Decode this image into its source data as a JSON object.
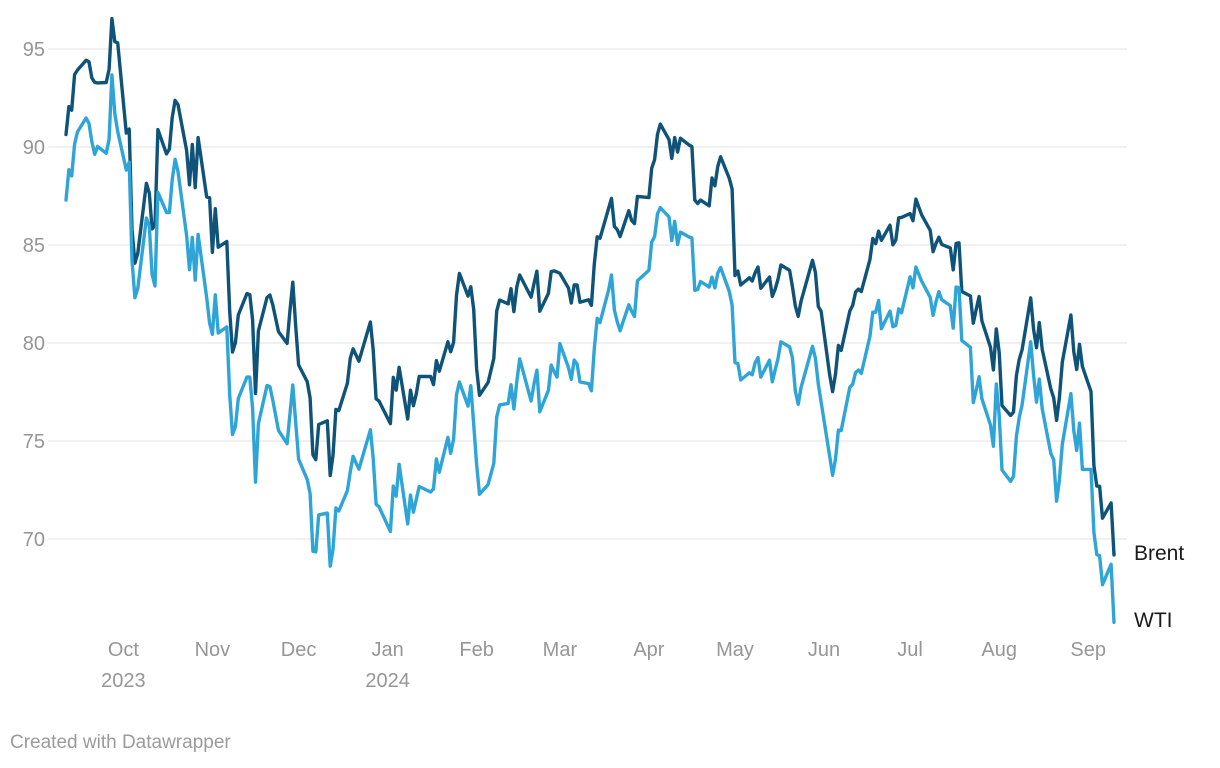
{
  "footer": {
    "credit": "Created with Datawrapper"
  },
  "colors": {
    "brent_line": "#0f5379",
    "wti_line": "#2fa5d7",
    "grid": "#e2e2e2",
    "axis_text": "#969696",
    "series_label_text": "#1a1a1a",
    "credit_text": "#9b9b9b",
    "background": "#ffffff"
  },
  "chart_data": {
    "type": "line",
    "title": "",
    "xlabel": "",
    "ylabel": "",
    "grid": "horizontal",
    "legend_position": "line-end-labels",
    "ylim": [
      65.5,
      97
    ],
    "yticks": [
      70,
      75,
      80,
      85,
      90,
      95
    ],
    "x_range": [
      "2023-09-11",
      "2024-09-10"
    ],
    "x_ticks": [
      {
        "date": "2023-10-01",
        "label": "Oct",
        "sublabel": "2023"
      },
      {
        "date": "2023-11-01",
        "label": "Nov"
      },
      {
        "date": "2023-12-01",
        "label": "Dec"
      },
      {
        "date": "2024-01-01",
        "label": "Jan",
        "sublabel": "2024"
      },
      {
        "date": "2024-02-01",
        "label": "Feb"
      },
      {
        "date": "2024-03-01",
        "label": "Mar"
      },
      {
        "date": "2024-04-01",
        "label": "Apr"
      },
      {
        "date": "2024-05-01",
        "label": "May"
      },
      {
        "date": "2024-06-01",
        "label": "Jun"
      },
      {
        "date": "2024-07-01",
        "label": "Jul"
      },
      {
        "date": "2024-08-01",
        "label": "Aug"
      },
      {
        "date": "2024-09-01",
        "label": "Sep"
      }
    ],
    "x": [
      "2023-09-11",
      "2023-09-12",
      "2023-09-13",
      "2023-09-14",
      "2023-09-15",
      "2023-09-18",
      "2023-09-19",
      "2023-09-20",
      "2023-09-21",
      "2023-09-22",
      "2023-09-25",
      "2023-09-26",
      "2023-09-27",
      "2023-09-28",
      "2023-09-29",
      "2023-10-02",
      "2023-10-03",
      "2023-10-04",
      "2023-10-05",
      "2023-10-06",
      "2023-10-09",
      "2023-10-10",
      "2023-10-11",
      "2023-10-12",
      "2023-10-13",
      "2023-10-16",
      "2023-10-17",
      "2023-10-18",
      "2023-10-19",
      "2023-10-20",
      "2023-10-23",
      "2023-10-24",
      "2023-10-25",
      "2023-10-26",
      "2023-10-27",
      "2023-10-30",
      "2023-10-31",
      "2023-11-01",
      "2023-11-02",
      "2023-11-03",
      "2023-11-06",
      "2023-11-07",
      "2023-11-08",
      "2023-11-09",
      "2023-11-10",
      "2023-11-13",
      "2023-11-14",
      "2023-11-15",
      "2023-11-16",
      "2023-11-17",
      "2023-11-20",
      "2023-11-21",
      "2023-11-22",
      "2023-11-24",
      "2023-11-27",
      "2023-11-28",
      "2023-11-29",
      "2023-11-30",
      "2023-12-01",
      "2023-12-04",
      "2023-12-05",
      "2023-12-06",
      "2023-12-07",
      "2023-12-08",
      "2023-12-11",
      "2023-12-12",
      "2023-12-13",
      "2023-12-14",
      "2023-12-15",
      "2023-12-18",
      "2023-12-19",
      "2023-12-20",
      "2023-12-21",
      "2023-12-22",
      "2023-12-26",
      "2023-12-27",
      "2023-12-28",
      "2023-12-29",
      "2024-01-02",
      "2024-01-03",
      "2024-01-04",
      "2024-01-05",
      "2024-01-08",
      "2024-01-09",
      "2024-01-10",
      "2024-01-11",
      "2024-01-12",
      "2024-01-16",
      "2024-01-17",
      "2024-01-18",
      "2024-01-19",
      "2024-01-22",
      "2024-01-23",
      "2024-01-24",
      "2024-01-25",
      "2024-01-26",
      "2024-01-29",
      "2024-01-30",
      "2024-01-31",
      "2024-02-01",
      "2024-02-02",
      "2024-02-05",
      "2024-02-06",
      "2024-02-07",
      "2024-02-08",
      "2024-02-09",
      "2024-02-12",
      "2024-02-13",
      "2024-02-14",
      "2024-02-15",
      "2024-02-16",
      "2024-02-20",
      "2024-02-21",
      "2024-02-22",
      "2024-02-23",
      "2024-02-26",
      "2024-02-27",
      "2024-02-28",
      "2024-02-29",
      "2024-03-01",
      "2024-03-04",
      "2024-03-05",
      "2024-03-06",
      "2024-03-07",
      "2024-03-08",
      "2024-03-11",
      "2024-03-12",
      "2024-03-13",
      "2024-03-14",
      "2024-03-15",
      "2024-03-18",
      "2024-03-19",
      "2024-03-20",
      "2024-03-21",
      "2024-03-22",
      "2024-03-25",
      "2024-03-26",
      "2024-03-27",
      "2024-03-28",
      "2024-04-01",
      "2024-04-02",
      "2024-04-03",
      "2024-04-04",
      "2024-04-05",
      "2024-04-08",
      "2024-04-09",
      "2024-04-10",
      "2024-04-11",
      "2024-04-12",
      "2024-04-15",
      "2024-04-16",
      "2024-04-17",
      "2024-04-18",
      "2024-04-19",
      "2024-04-22",
      "2024-04-23",
      "2024-04-24",
      "2024-04-25",
      "2024-04-26",
      "2024-04-29",
      "2024-04-30",
      "2024-05-01",
      "2024-05-02",
      "2024-05-03",
      "2024-05-06",
      "2024-05-07",
      "2024-05-08",
      "2024-05-09",
      "2024-05-10",
      "2024-05-13",
      "2024-05-14",
      "2024-05-15",
      "2024-05-16",
      "2024-05-17",
      "2024-05-20",
      "2024-05-21",
      "2024-05-22",
      "2024-05-23",
      "2024-05-24",
      "2024-05-28",
      "2024-05-29",
      "2024-05-30",
      "2024-05-31",
      "2024-06-03",
      "2024-06-04",
      "2024-06-05",
      "2024-06-06",
      "2024-06-07",
      "2024-06-10",
      "2024-06-11",
      "2024-06-12",
      "2024-06-13",
      "2024-06-14",
      "2024-06-17",
      "2024-06-18",
      "2024-06-19",
      "2024-06-20",
      "2024-06-21",
      "2024-06-24",
      "2024-06-25",
      "2024-06-26",
      "2024-06-27",
      "2024-06-28",
      "2024-07-01",
      "2024-07-02",
      "2024-07-03",
      "2024-07-05",
      "2024-07-08",
      "2024-07-09",
      "2024-07-10",
      "2024-07-11",
      "2024-07-12",
      "2024-07-15",
      "2024-07-16",
      "2024-07-17",
      "2024-07-18",
      "2024-07-19",
      "2024-07-22",
      "2024-07-23",
      "2024-07-24",
      "2024-07-25",
      "2024-07-26",
      "2024-07-29",
      "2024-07-30",
      "2024-07-31",
      "2024-08-01",
      "2024-08-02",
      "2024-08-05",
      "2024-08-06",
      "2024-08-07",
      "2024-08-08",
      "2024-08-09",
      "2024-08-12",
      "2024-08-13",
      "2024-08-14",
      "2024-08-15",
      "2024-08-16",
      "2024-08-19",
      "2024-08-20",
      "2024-08-21",
      "2024-08-22",
      "2024-08-23",
      "2024-08-26",
      "2024-08-27",
      "2024-08-28",
      "2024-08-29",
      "2024-08-30",
      "2024-09-02",
      "2024-09-03",
      "2024-09-04",
      "2024-09-05",
      "2024-09-06",
      "2024-09-09",
      "2024-09-10"
    ],
    "series": [
      {
        "name": "Brent",
        "color": "#0f5379",
        "values": [
          90.64,
          92.06,
          91.88,
          93.7,
          93.93,
          94.43,
          94.34,
          93.53,
          93.3,
          93.27,
          93.29,
          93.96,
          96.55,
          95.38,
          95.31,
          90.71,
          90.92,
          85.81,
          84.07,
          84.58,
          88.15,
          87.65,
          85.82,
          86.0,
          90.89,
          89.65,
          89.9,
          91.5,
          92.38,
          92.16,
          89.83,
          88.07,
          90.13,
          87.93,
          90.48,
          87.45,
          87.41,
          84.63,
          86.85,
          84.89,
          85.18,
          81.61,
          79.54,
          80.01,
          81.43,
          82.52,
          82.47,
          81.18,
          77.42,
          80.61,
          82.32,
          82.45,
          81.96,
          80.58,
          79.98,
          81.68,
          83.1,
          80.86,
          78.88,
          78.03,
          77.2,
          74.3,
          74.05,
          75.84,
          76.03,
          73.24,
          74.26,
          76.61,
          76.55,
          77.95,
          79.23,
          79.7,
          79.39,
          79.07,
          81.07,
          79.65,
          77.15,
          77.04,
          75.89,
          78.25,
          77.59,
          78.76,
          76.12,
          77.59,
          76.8,
          77.41,
          78.29,
          78.29,
          77.88,
          79.1,
          78.56,
          80.06,
          79.55,
          80.04,
          82.43,
          83.55,
          82.4,
          82.87,
          81.71,
          78.7,
          77.33,
          77.99,
          78.59,
          79.21,
          81.63,
          82.19,
          82.0,
          82.77,
          81.6,
          82.86,
          83.47,
          82.34,
          83.03,
          83.67,
          81.62,
          82.53,
          83.65,
          83.68,
          83.62,
          83.55,
          82.8,
          82.04,
          82.96,
          82.96,
          82.08,
          82.21,
          81.92,
          84.03,
          85.42,
          85.34,
          86.89,
          87.38,
          85.95,
          85.78,
          85.43,
          86.75,
          86.25,
          86.09,
          87.48,
          87.42,
          88.92,
          89.35,
          90.65,
          91.17,
          90.38,
          89.42,
          90.48,
          89.74,
          90.45,
          90.1,
          90.02,
          87.29,
          87.11,
          87.29,
          87.0,
          88.42,
          88.02,
          89.01,
          89.5,
          88.4,
          87.86,
          83.44,
          83.67,
          82.96,
          83.33,
          83.16,
          83.58,
          83.88,
          82.79,
          83.36,
          82.38,
          82.75,
          83.27,
          83.98,
          83.71,
          82.88,
          81.9,
          81.36,
          82.12,
          84.22,
          83.6,
          81.86,
          81.62,
          78.36,
          77.52,
          78.41,
          79.87,
          79.62,
          81.63,
          81.92,
          82.6,
          82.75,
          82.62,
          84.25,
          85.33,
          85.07,
          85.71,
          85.24,
          86.01,
          85.01,
          85.25,
          86.39,
          86.41,
          86.6,
          86.24,
          87.34,
          86.54,
          85.75,
          84.66,
          85.08,
          85.4,
          85.03,
          84.85,
          83.73,
          85.08,
          85.11,
          82.63,
          82.4,
          81.01,
          81.71,
          82.37,
          81.13,
          79.78,
          78.63,
          80.72,
          79.52,
          76.81,
          76.3,
          76.48,
          78.33,
          79.16,
          79.66,
          82.3,
          80.69,
          79.76,
          81.04,
          79.68,
          77.66,
          77.2,
          76.05,
          77.22,
          79.02,
          81.43,
          79.55,
          78.65,
          79.94,
          78.8,
          77.52,
          73.75,
          72.7,
          72.69,
          71.06,
          71.84,
          69.19
        ]
      },
      {
        "name": "WTI",
        "color": "#2fa5d7",
        "values": [
          87.29,
          88.84,
          88.52,
          90.16,
          90.77,
          91.48,
          91.2,
          90.28,
          89.63,
          90.03,
          89.68,
          90.39,
          93.68,
          91.71,
          90.79,
          88.82,
          89.23,
          84.22,
          82.31,
          82.79,
          86.38,
          85.97,
          83.49,
          82.91,
          87.69,
          86.66,
          86.66,
          88.32,
          89.37,
          88.75,
          85.49,
          83.74,
          85.39,
          83.21,
          85.54,
          82.31,
          81.02,
          80.44,
          82.46,
          80.51,
          80.82,
          77.37,
          75.33,
          75.74,
          77.17,
          78.26,
          78.26,
          76.66,
          72.9,
          75.89,
          77.83,
          77.77,
          77.1,
          75.54,
          74.86,
          76.41,
          77.86,
          75.96,
          74.07,
          73.04,
          72.32,
          69.38,
          69.34,
          71.23,
          71.32,
          68.61,
          69.47,
          71.58,
          71.43,
          72.47,
          73.44,
          74.22,
          73.89,
          73.56,
          75.57,
          74.11,
          71.77,
          71.65,
          70.38,
          72.7,
          72.19,
          73.81,
          70.77,
          72.24,
          71.37,
          72.02,
          72.68,
          72.4,
          72.56,
          74.08,
          73.41,
          75.19,
          74.37,
          75.09,
          77.36,
          78.01,
          76.78,
          77.82,
          75.85,
          73.82,
          72.28,
          72.78,
          73.31,
          73.86,
          76.22,
          76.84,
          76.92,
          77.87,
          76.64,
          78.03,
          79.19,
          77.04,
          77.91,
          78.61,
          76.49,
          77.58,
          78.87,
          78.54,
          78.26,
          79.97,
          78.74,
          78.15,
          79.13,
          78.93,
          78.01,
          77.93,
          77.56,
          79.72,
          81.26,
          81.04,
          82.72,
          83.47,
          81.68,
          81.07,
          80.63,
          81.95,
          81.62,
          81.35,
          83.17,
          83.71,
          85.15,
          85.43,
          86.59,
          86.91,
          86.43,
          85.23,
          86.21,
          85.02,
          85.66,
          85.41,
          85.36,
          82.69,
          82.73,
          83.14,
          82.85,
          83.36,
          82.81,
          83.57,
          83.85,
          82.63,
          81.93,
          79.0,
          78.95,
          78.11,
          78.48,
          78.38,
          78.99,
          79.26,
          78.26,
          79.12,
          78.02,
          78.63,
          79.23,
          80.06,
          79.8,
          79.26,
          77.57,
          76.87,
          77.72,
          79.83,
          79.23,
          77.91,
          76.99,
          74.22,
          73.25,
          74.07,
          75.55,
          75.53,
          77.74,
          77.9,
          78.5,
          78.62,
          78.45,
          80.33,
          81.57,
          81.57,
          82.17,
          80.73,
          81.63,
          80.83,
          80.9,
          81.74,
          81.54,
          83.38,
          82.81,
          83.88,
          83.16,
          82.33,
          81.41,
          82.1,
          82.62,
          82.21,
          81.91,
          80.76,
          82.85,
          82.82,
          80.13,
          79.78,
          76.96,
          77.59,
          78.28,
          77.16,
          75.81,
          74.73,
          77.91,
          76.31,
          73.52,
          72.94,
          73.2,
          75.23,
          76.19,
          76.84,
          80.06,
          78.35,
          76.98,
          78.16,
          76.65,
          74.37,
          74.04,
          71.93,
          73.01,
          74.83,
          77.42,
          75.53,
          74.52,
          75.91,
          73.55,
          73.55,
          70.34,
          69.2,
          69.15,
          67.67,
          68.71,
          65.75
        ]
      }
    ]
  }
}
